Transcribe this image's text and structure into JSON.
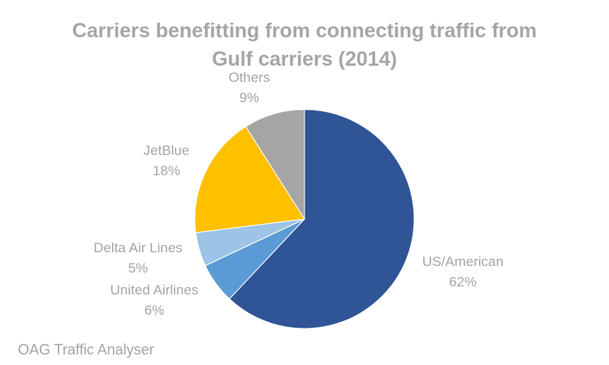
{
  "chart_data": {
    "type": "pie",
    "title": [
      "Carriers benefitting from connecting traffic from",
      "Gulf carriers (2014)"
    ],
    "slices": [
      {
        "label": "US/American",
        "value": 62,
        "value_label": "62%",
        "color": "#2f5597"
      },
      {
        "label": "United Airlines",
        "value": 6,
        "value_label": "6%",
        "color": "#5b9bd5"
      },
      {
        "label": "Delta Air Lines",
        "value": 5,
        "value_label": "5%",
        "color": "#9dc3e6"
      },
      {
        "label": "JetBlue",
        "value": 18,
        "value_label": "18%",
        "color": "#ffc000"
      },
      {
        "label": "Others",
        "value": 9,
        "value_label": "9%",
        "color": "#a5a5a5"
      }
    ],
    "start": "top",
    "direction": "clockwise",
    "legend": "none",
    "source": "OAG Traffic Analyser"
  }
}
